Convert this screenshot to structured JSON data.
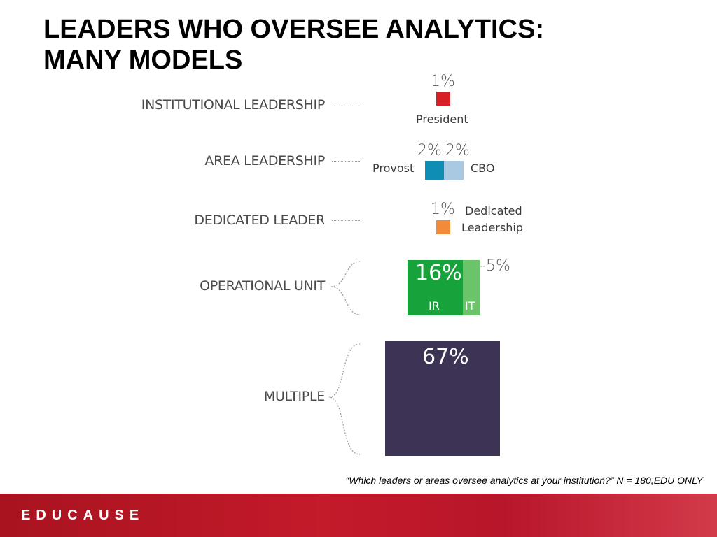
{
  "title": {
    "line1": "LEADERS WHO OVERSEE ANALYTICS:",
    "line2": "MANY MODELS"
  },
  "chart_data": {
    "type": "area-squares",
    "categories": [
      "INSTITUTIONAL LEADERSHIP",
      "AREA LEADERSHIP",
      "DEDICATED LEADER",
      "OPERATIONAL UNIT",
      "MULTIPLE"
    ],
    "items": [
      {
        "category": "INSTITUTIONAL LEADERSHIP",
        "name": "President",
        "value": 1,
        "value_label": "1%",
        "color": "#d71f26"
      },
      {
        "category": "AREA LEADERSHIP",
        "name": "Provost",
        "value": 2,
        "value_label": "2%",
        "color": "#0f8db3"
      },
      {
        "category": "AREA LEADERSHIP",
        "name": "CBO",
        "value": 2,
        "value_label": "2%",
        "color": "#a9c8e2"
      },
      {
        "category": "DEDICATED LEADER",
        "name": "Dedicated Leadership",
        "name_line1": "Dedicated",
        "name_line2": "Leadership",
        "value": 1,
        "value_label": "1%",
        "color": "#f28a3a"
      },
      {
        "category": "OPERATIONAL UNIT",
        "name": "IR",
        "value": 16,
        "value_label": "16%",
        "color": "#17a23c"
      },
      {
        "category": "OPERATIONAL UNIT",
        "name": "IT",
        "value": 5,
        "value_label": "5%",
        "color": "#6cc46a"
      },
      {
        "category": "MULTIPLE",
        "name": "",
        "value": 67,
        "value_label": "67%",
        "color": "#3d3455"
      }
    ]
  },
  "footnote": "“Which leaders or areas oversee analytics at your institution?” N = 180,EDU ONLY",
  "footer": {
    "logo_text": "EDUCAUSE",
    "color": "#c41a2a"
  }
}
